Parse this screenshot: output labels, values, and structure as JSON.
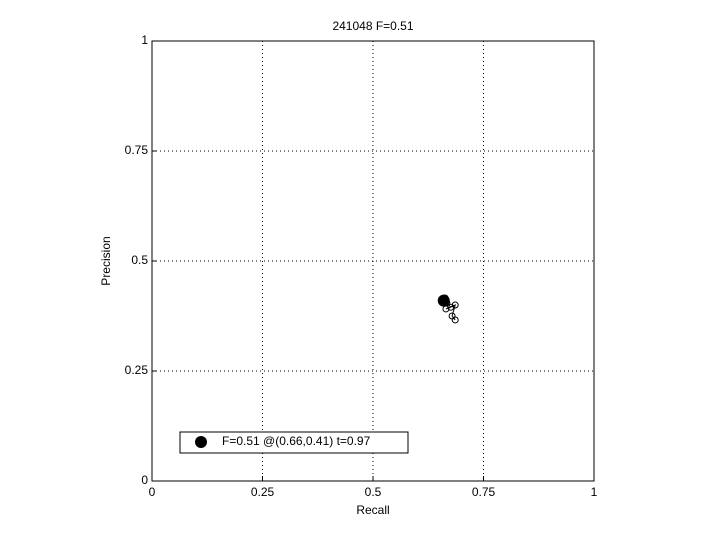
{
  "chart_data": {
    "type": "line",
    "title": "241048 F=0.51",
    "xlabel": "Recall",
    "ylabel": "Precision",
    "xlim": [
      0,
      1
    ],
    "ylim": [
      0,
      1
    ],
    "xticks": [
      0,
      0.25,
      0.5,
      0.75,
      1
    ],
    "yticks": [
      0,
      0.25,
      0.5,
      0.75,
      1
    ],
    "grid": true,
    "legend": "lower left",
    "series": [
      {
        "color": "#000000",
        "x": [
          0.663,
          0.667,
          0.676,
          0.665,
          0.686,
          0.679,
          0.686
        ],
        "values": [
          0.416,
          0.405,
          0.395,
          0.391,
          0.4,
          0.375,
          0.366
        ]
      },
      {
        "name": "F=0.51 @(0.66,0.41) t=0.97",
        "color": "#000000",
        "x": [
          0.66
        ],
        "values": [
          0.41
        ]
      }
    ]
  }
}
